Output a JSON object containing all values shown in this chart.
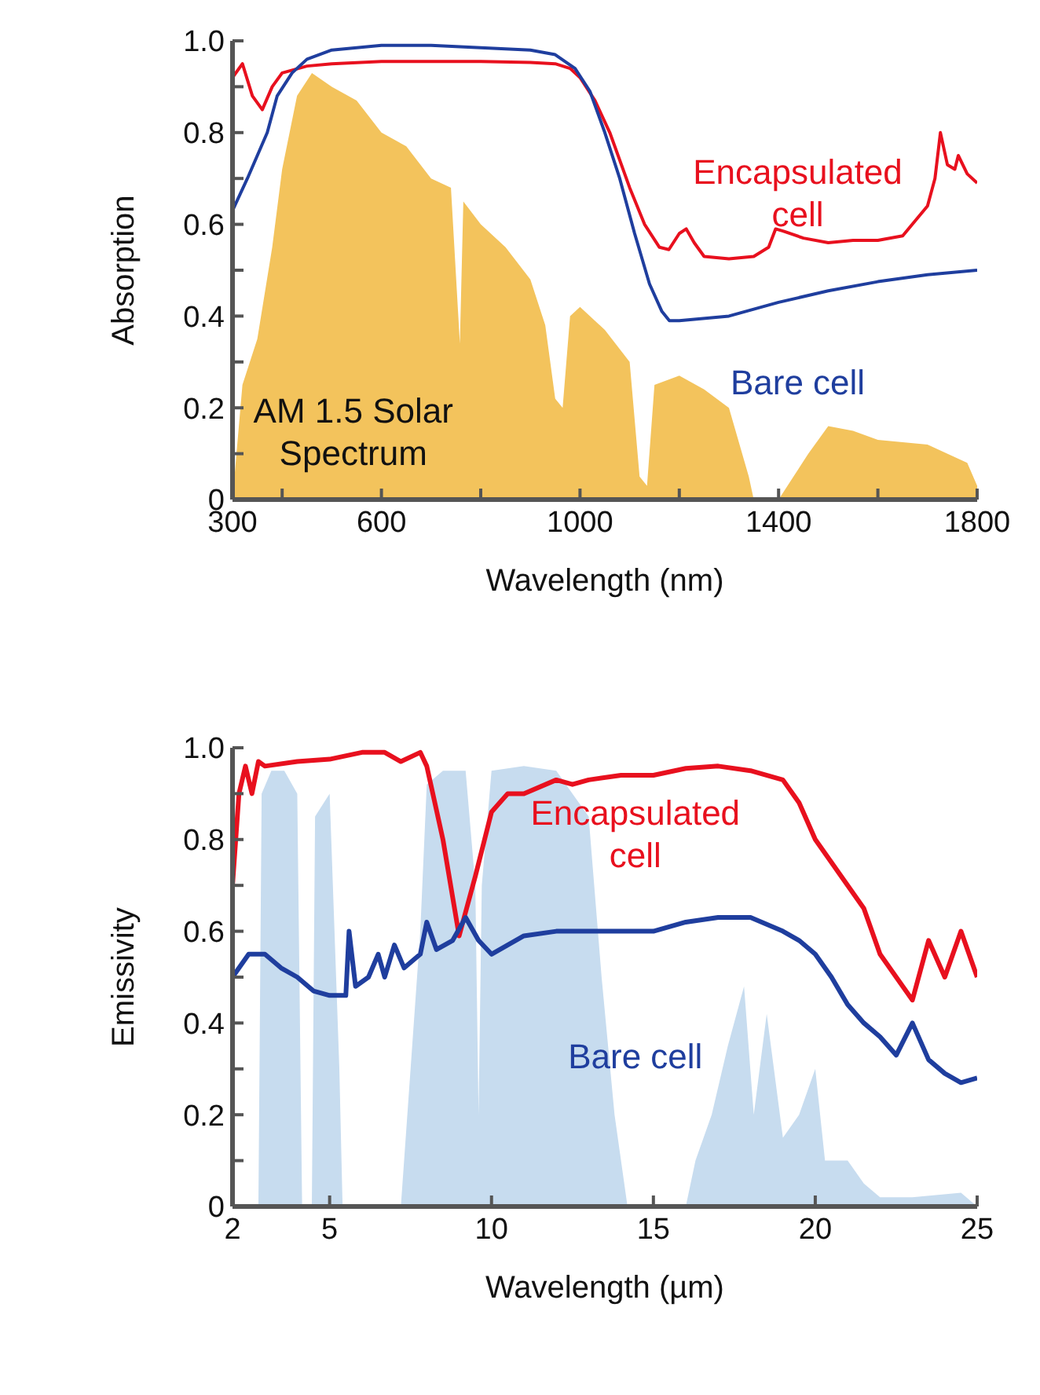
{
  "chart_data": [
    {
      "type": "line",
      "xlabel": "Wavelength (nm)",
      "ylabel": "Absorption",
      "xlim": [
        300,
        1800
      ],
      "ylim": [
        0,
        1
      ],
      "xticks": [
        300,
        {
          "value": 400,
          "label": null
        },
        600,
        {
          "value": 800,
          "label": null
        },
        1000,
        {
          "value": 1200,
          "label": null
        },
        1400,
        {
          "value": 1600,
          "label": null
        },
        1800
      ],
      "yticks": [
        0,
        {
          "value": 0.1,
          "label": null
        },
        0.2,
        {
          "value": 0.3,
          "label": null
        },
        0.4,
        {
          "value": 0.5,
          "label": null
        },
        0.6,
        {
          "value": 0.7,
          "label": null
        },
        0.8,
        {
          "value": 0.9,
          "label": null
        },
        {
          "value": 1,
          "label": "1.0"
        }
      ],
      "grid": false,
      "legend": false,
      "marker": "none",
      "line_style": "solid",
      "series": [
        {
          "name": "AM 1.5 Solar Spectrum",
          "type": "area",
          "color": "#f3c35c",
          "x": [
            300,
            320,
            350,
            380,
            400,
            430,
            460,
            500,
            550,
            600,
            650,
            700,
            740,
            758,
            765,
            800,
            850,
            900,
            930,
            950,
            965,
            980,
            1000,
            1050,
            1100,
            1120,
            1135,
            1150,
            1200,
            1250,
            1300,
            1340,
            1350,
            1400,
            1430,
            1460,
            1500,
            1550,
            1600,
            1700,
            1780,
            1800
          ],
          "values": [
            0,
            0.25,
            0.35,
            0.55,
            0.72,
            0.88,
            0.93,
            0.9,
            0.87,
            0.8,
            0.77,
            0.7,
            0.68,
            0.34,
            0.65,
            0.6,
            0.55,
            0.48,
            0.38,
            0.22,
            0.2,
            0.4,
            0.42,
            0.37,
            0.3,
            0.05,
            0.03,
            0.25,
            0.27,
            0.24,
            0.2,
            0.05,
            0,
            0,
            0.05,
            0.1,
            0.16,
            0.15,
            0.13,
            0.12,
            0.08,
            0.03
          ]
        },
        {
          "name": "Encapsulated cell",
          "color": "#e8101e",
          "x": [
            300,
            320,
            340,
            360,
            380,
            400,
            450,
            500,
            600,
            700,
            800,
            900,
            950,
            980,
            1000,
            1030,
            1060,
            1100,
            1130,
            1160,
            1179,
            1200,
            1214,
            1230,
            1250,
            1300,
            1350,
            1380,
            1394,
            1410,
            1450,
            1500,
            1550,
            1600,
            1650,
            1700,
            1715,
            1726,
            1740,
            1755,
            1762,
            1780,
            1800
          ],
          "values": [
            0.92,
            0.95,
            0.88,
            0.85,
            0.9,
            0.93,
            0.945,
            0.95,
            0.955,
            0.955,
            0.955,
            0.953,
            0.95,
            0.94,
            0.92,
            0.87,
            0.8,
            0.68,
            0.6,
            0.55,
            0.545,
            0.58,
            0.59,
            0.56,
            0.53,
            0.525,
            0.53,
            0.55,
            0.59,
            0.585,
            0.57,
            0.56,
            0.565,
            0.565,
            0.575,
            0.64,
            0.7,
            0.8,
            0.73,
            0.72,
            0.75,
            0.71,
            0.69
          ]
        },
        {
          "name": "Bare cell",
          "color": "#1f3e9e",
          "x": [
            300,
            330,
            350,
            370,
            390,
            420,
            450,
            500,
            600,
            700,
            800,
            900,
            950,
            990,
            1020,
            1050,
            1080,
            1110,
            1140,
            1165,
            1180,
            1200,
            1300,
            1400,
            1500,
            1600,
            1700,
            1800
          ],
          "values": [
            0.63,
            0.7,
            0.75,
            0.8,
            0.88,
            0.93,
            0.96,
            0.98,
            0.99,
            0.99,
            0.985,
            0.98,
            0.97,
            0.94,
            0.89,
            0.8,
            0.7,
            0.58,
            0.47,
            0.41,
            0.39,
            0.39,
            0.4,
            0.43,
            0.455,
            0.475,
            0.49,
            0.5
          ]
        }
      ]
    },
    {
      "type": "line",
      "xlabel": "Wavelength (µm)",
      "ylabel": "Emissivity",
      "xlim": [
        2,
        25
      ],
      "ylim": [
        0,
        1
      ],
      "xticks": [
        2,
        5,
        10,
        15,
        20,
        25
      ],
      "yticks": [
        0,
        {
          "value": 0.1,
          "label": null
        },
        0.2,
        {
          "value": 0.3,
          "label": null
        },
        0.4,
        {
          "value": 0.5,
          "label": null
        },
        0.6,
        {
          "value": 0.7,
          "label": null
        },
        0.8,
        {
          "value": 0.9,
          "label": null
        },
        {
          "value": 1,
          "label": "1.0"
        }
      ],
      "grid": false,
      "legend": false,
      "marker": "none",
      "line_style": "solid",
      "series": [
        {
          "type": "area",
          "color": "#c7dcef",
          "x": [
            2,
            2.8,
            2.9,
            3.2,
            3.6,
            4.0,
            4.15,
            4.45,
            4.55,
            5.0,
            5.3,
            5.4,
            7.2,
            7.5,
            7.8,
            8.0,
            8.5,
            9.2,
            9.5,
            9.6,
            9.7,
            10.0,
            11,
            12,
            12.5,
            13,
            13.4,
            13.8,
            14.2,
            16,
            16.3,
            16.8,
            17.3,
            17.8,
            18.1,
            18.5,
            19,
            19.5,
            20,
            20.3,
            21,
            21.5,
            22,
            23,
            24.5,
            25
          ],
          "values": [
            0,
            0,
            0.9,
            0.95,
            0.95,
            0.9,
            0,
            0,
            0.85,
            0.9,
            0.3,
            0,
            0,
            0.3,
            0.6,
            0.92,
            0.95,
            0.95,
            0.7,
            0.2,
            0.7,
            0.95,
            0.96,
            0.95,
            0.9,
            0.85,
            0.5,
            0.2,
            0,
            0,
            0.1,
            0.2,
            0.35,
            0.48,
            0.2,
            0.42,
            0.15,
            0.2,
            0.3,
            0.1,
            0.1,
            0.05,
            0.02,
            0.02,
            0.03,
            0
          ]
        },
        {
          "name": "Encapsulated cell",
          "color": "#e8101e",
          "x": [
            2,
            2.2,
            2.4,
            2.6,
            2.8,
            3,
            4,
            5,
            6,
            6.7,
            7.2,
            7.8,
            8.0,
            8.5,
            9.0,
            9.5,
            10,
            10.5,
            11,
            12,
            12.5,
            13,
            14,
            15,
            16,
            17,
            18,
            19,
            19.5,
            20,
            20.5,
            21,
            21.5,
            22,
            22.5,
            23,
            23.5,
            24,
            24.5,
            25
          ],
          "values": [
            0.7,
            0.9,
            0.96,
            0.9,
            0.97,
            0.96,
            0.97,
            0.975,
            0.99,
            0.99,
            0.97,
            0.99,
            0.96,
            0.8,
            0.59,
            0.72,
            0.86,
            0.9,
            0.9,
            0.93,
            0.92,
            0.93,
            0.94,
            0.94,
            0.955,
            0.96,
            0.95,
            0.93,
            0.88,
            0.8,
            0.75,
            0.7,
            0.65,
            0.55,
            0.5,
            0.45,
            0.58,
            0.5,
            0.6,
            0.5
          ]
        },
        {
          "name": "Bare cell",
          "color": "#1f3e9e",
          "x": [
            2,
            2.5,
            3,
            3.5,
            4,
            4.5,
            5,
            5.5,
            5.6,
            5.8,
            6.2,
            6.5,
            6.7,
            7.0,
            7.3,
            7.8,
            8.0,
            8.3,
            8.8,
            9.2,
            9.6,
            10,
            10.5,
            11,
            12,
            13,
            14,
            15,
            16,
            17,
            18,
            19,
            19.5,
            20,
            20.5,
            21,
            21.5,
            22,
            22.5,
            23,
            23.5,
            24,
            24.5,
            25
          ],
          "values": [
            0.5,
            0.55,
            0.55,
            0.52,
            0.5,
            0.47,
            0.46,
            0.46,
            0.6,
            0.48,
            0.5,
            0.55,
            0.5,
            0.57,
            0.52,
            0.55,
            0.62,
            0.56,
            0.58,
            0.63,
            0.58,
            0.55,
            0.57,
            0.59,
            0.6,
            0.6,
            0.6,
            0.6,
            0.62,
            0.63,
            0.63,
            0.6,
            0.58,
            0.55,
            0.5,
            0.44,
            0.4,
            0.37,
            0.33,
            0.4,
            0.32,
            0.29,
            0.27,
            0.28
          ]
        }
      ]
    }
  ]
}
